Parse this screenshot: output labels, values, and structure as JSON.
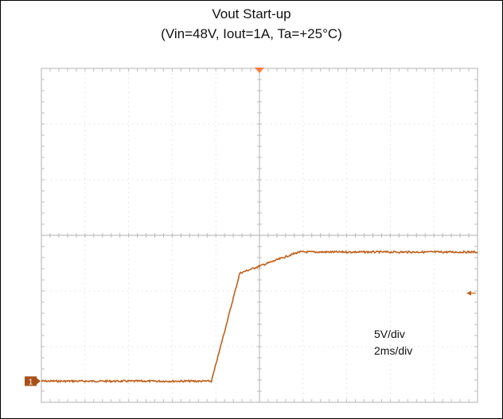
{
  "title": "Vout Start-up",
  "subtitle": "(Vin=48V, Iout=1A, Ta=+25°C)",
  "vertical_scale": "5V/div",
  "horizontal_scale": "2ms/div",
  "channel_marker": "1",
  "colors": {
    "trace": "#c0601a",
    "grid": "#d6d6d6",
    "axis": "#bdbdbd",
    "marker": "#a85018",
    "trigger": "#ff7a3a"
  },
  "chart_data": {
    "type": "line",
    "title": "Vout Start-up",
    "subtitle": "(Vin=48V, Iout=1A, Ta=+25°C)",
    "x_units": "ms",
    "y_units": "V",
    "xlim": [
      0,
      20
    ],
    "ylim": [
      -15,
      15
    ],
    "grid": true,
    "divisions": {
      "x": 10,
      "y": 6
    },
    "x_per_div": 2,
    "y_per_div": 5,
    "series": [
      {
        "values_x": [
          0,
          7.8,
          9.1,
          11.8,
          20
        ],
        "values_y": [
          -13.1,
          -13.1,
          -3.4,
          -1.5,
          -1.5
        ]
      }
    ]
  }
}
